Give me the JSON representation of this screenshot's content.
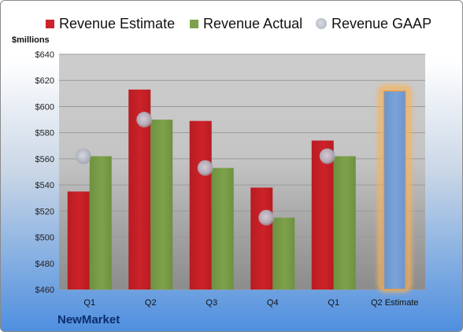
{
  "brand": "NewMarket",
  "legend": {
    "estimate": "Revenue Estimate",
    "actual": "Revenue Actual",
    "gaap": "Revenue GAAP"
  },
  "colors": {
    "estimate": "#cc2229",
    "actual": "#7ea24b",
    "gaap": "#b9bdc8",
    "highlight_bar": "#7aa3d8",
    "highlight_glow": "#f5b35c"
  },
  "chart_data": {
    "type": "bar",
    "ylabel": "$millions",
    "ylim": [
      460,
      640
    ],
    "yticks": [
      460,
      480,
      500,
      520,
      540,
      560,
      580,
      600,
      620,
      640
    ],
    "ytick_labels": [
      "$460",
      "$480",
      "$500",
      "$520",
      "$540",
      "$560",
      "$580",
      "$600",
      "$620",
      "$640"
    ],
    "grid": true,
    "legend_position": "top",
    "categories": [
      "Q1",
      "Q2",
      "Q3",
      "Q4",
      "Q1",
      "Q2 Estimate"
    ],
    "series": [
      {
        "name": "Revenue Estimate",
        "values": [
          535,
          613,
          589,
          538,
          574,
          612
        ]
      },
      {
        "name": "Revenue Actual",
        "values": [
          562,
          590,
          553,
          515,
          562,
          null
        ]
      },
      {
        "name": "Revenue GAAP",
        "values": [
          562,
          590,
          553,
          515,
          562,
          null
        ]
      }
    ]
  }
}
